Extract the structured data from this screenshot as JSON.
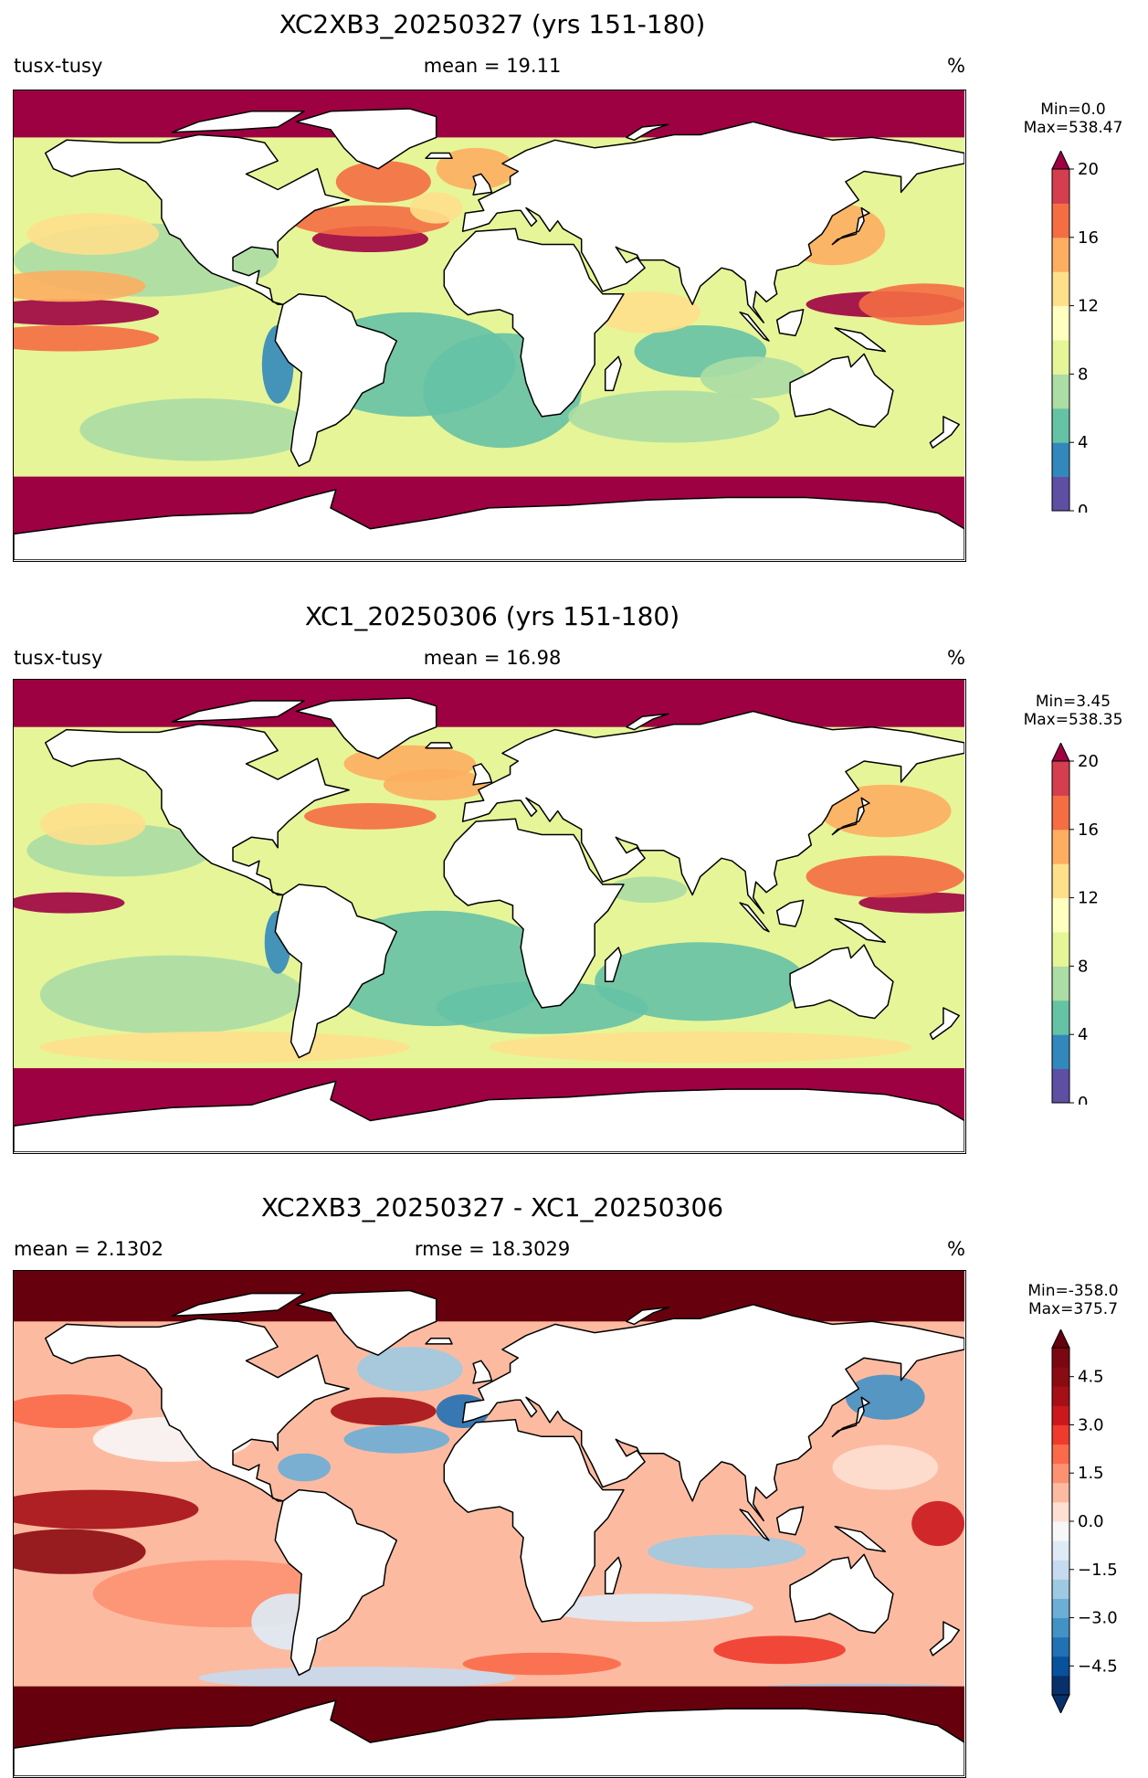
{
  "panels": [
    {
      "title": "XC2XB3_20250327 (yrs 151-180)",
      "left_label": "tusx-tusy",
      "center_label": "mean = 19.11",
      "right_label": "%",
      "colorbar": {
        "min_label": "Min=0.0",
        "max_label": "Max=538.47",
        "ticks": [
          "0",
          "4",
          "8",
          "12",
          "16",
          "20"
        ],
        "colors": [
          "#5e4fa2",
          "#3288bd",
          "#66c2a5",
          "#abdda4",
          "#e6f598",
          "#ffffbf",
          "#fee08b",
          "#fdae61",
          "#f46d43",
          "#d53e4f"
        ],
        "extend_color": "#9e0142"
      }
    },
    {
      "title": "XC1_20250306 (yrs 151-180)",
      "left_label": "tusx-tusy",
      "center_label": "mean = 16.98",
      "right_label": "%",
      "colorbar": {
        "min_label": "Min=3.45",
        "max_label": "Max=538.35",
        "ticks": [
          "0",
          "4",
          "8",
          "12",
          "16",
          "20"
        ],
        "colors": [
          "#5e4fa2",
          "#3288bd",
          "#66c2a5",
          "#abdda4",
          "#e6f598",
          "#ffffbf",
          "#fee08b",
          "#fdae61",
          "#f46d43",
          "#d53e4f"
        ],
        "extend_color": "#9e0142"
      }
    },
    {
      "title": "XC2XB3_20250327 - XC1_20250306",
      "left_label": "mean = 2.1302",
      "center_label": "rmse = 18.3029",
      "right_label": "%",
      "colorbar": {
        "min_label": "Min=-358.0",
        "max_label": "Max=375.7",
        "ticks": [
          "−4.5",
          "−3.0",
          "−1.5",
          "0.0",
          "1.5",
          "3.0",
          "4.5"
        ],
        "colors": [
          "#08306b",
          "#08519c",
          "#2171b5",
          "#4292c6",
          "#6baed6",
          "#9ecae1",
          "#c6dbef",
          "#deebf7",
          "#f7f7f7",
          "#fee0d2",
          "#fcbba1",
          "#fc9272",
          "#fb6a4a",
          "#ef3b2c",
          "#cb181d",
          "#a50f15",
          "#8b0b12",
          "#7a0712"
        ],
        "extend_low_color": "#08306b",
        "extend_color": "#67000d"
      }
    }
  ]
}
